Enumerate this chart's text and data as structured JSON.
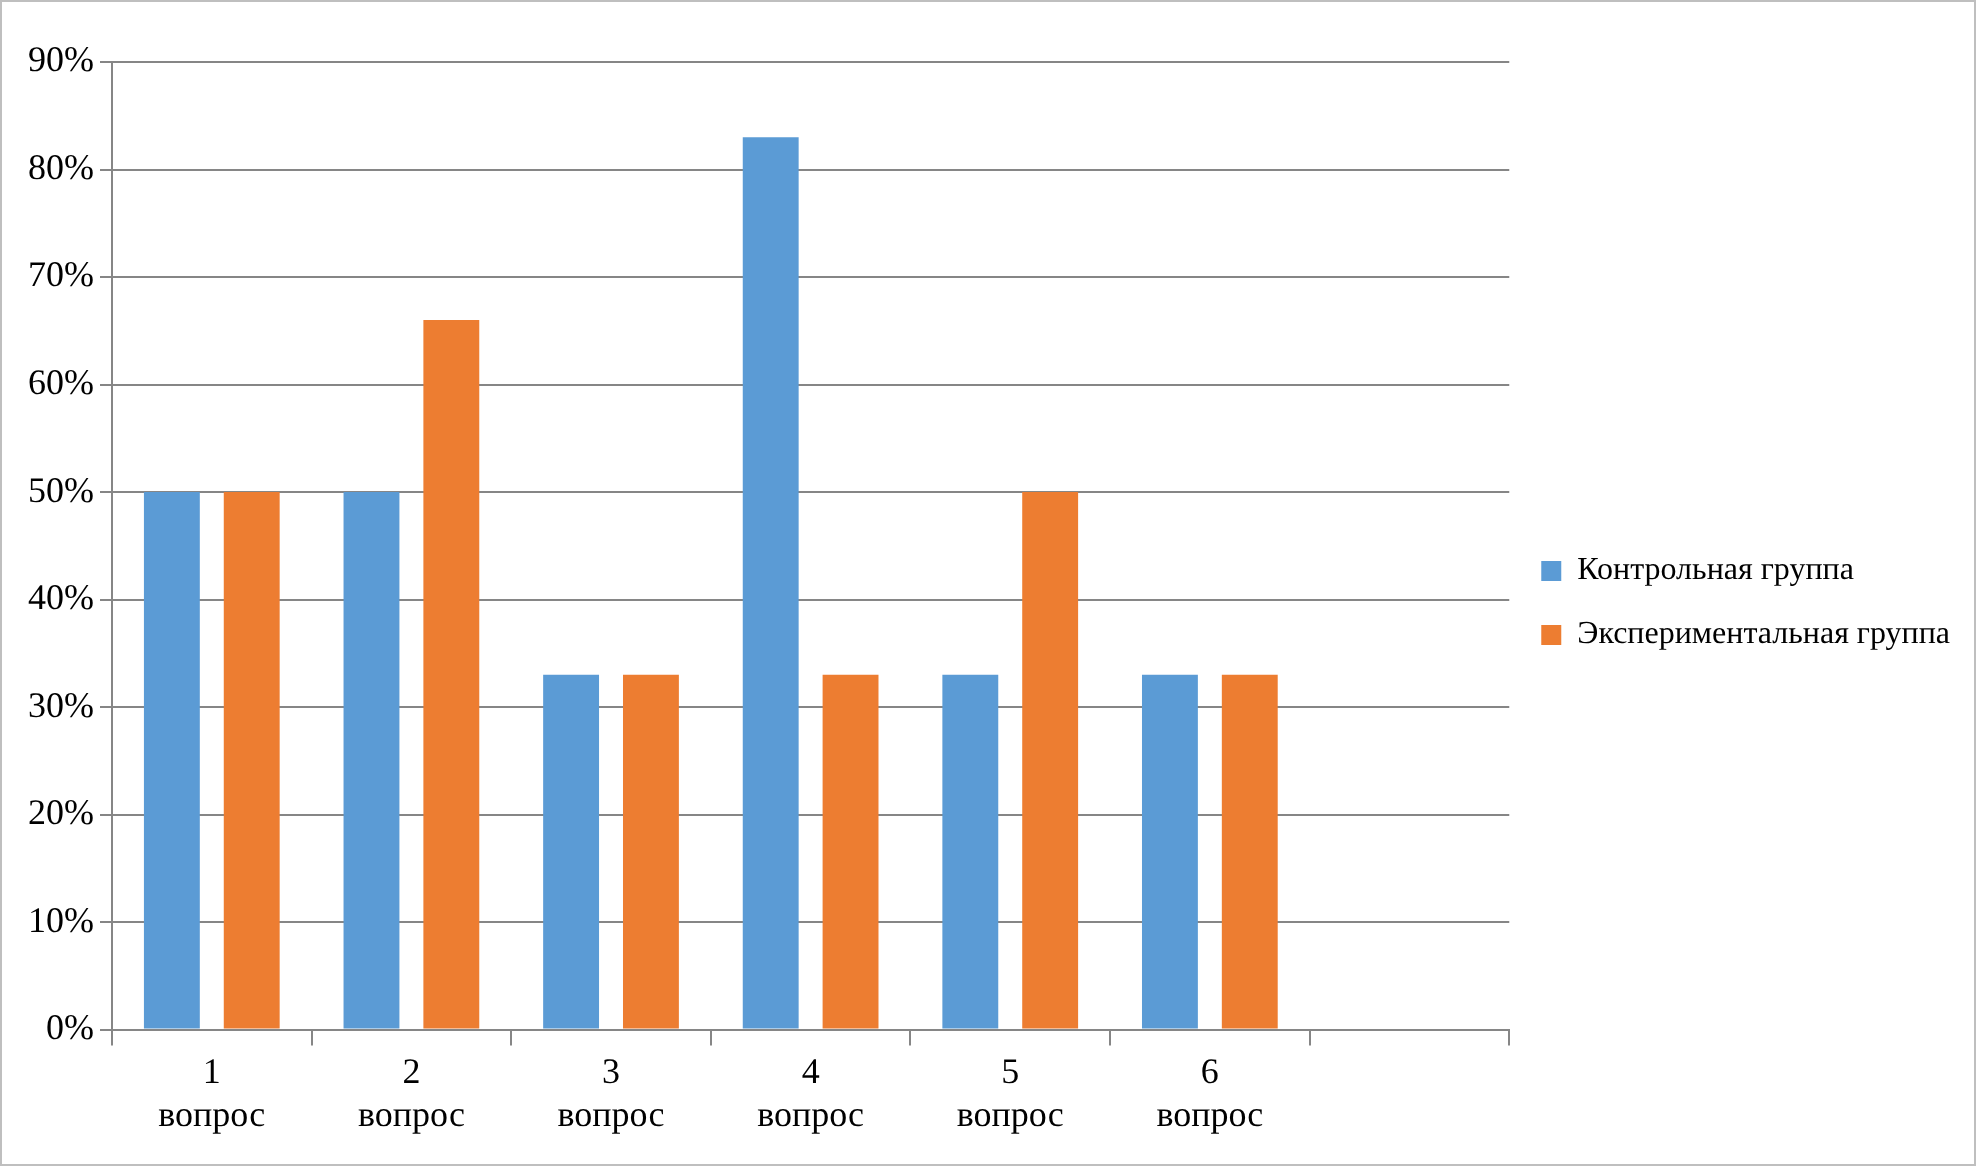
{
  "chart_data": {
    "type": "bar",
    "categories": [
      "1 вопрос",
      "2 вопрос",
      "3 вопрос",
      "4 вопрос",
      "5 вопрос",
      "6 вопрос",
      null
    ],
    "series": [
      {
        "name": "Контрольная группа",
        "color": "#5b9bd5",
        "values": [
          50,
          50,
          33,
          83,
          33,
          33,
          null
        ]
      },
      {
        "name": "Экспериментальная группа",
        "color": "#ed7d31",
        "values": [
          50,
          66,
          33,
          33,
          50,
          33,
          null
        ]
      }
    ],
    "ylim": [
      0,
      90
    ],
    "yticks": [
      {
        "value": 0,
        "label": "0%"
      },
      {
        "value": 10,
        "label": "10%"
      },
      {
        "value": 20,
        "label": "20%"
      },
      {
        "value": 30,
        "label": "30%"
      },
      {
        "value": 40,
        "label": "40%"
      },
      {
        "value": 50,
        "label": "50%"
      },
      {
        "value": 60,
        "label": "60%"
      },
      {
        "value": 70,
        "label": "70%"
      },
      {
        "value": 80,
        "label": "80%"
      },
      {
        "value": 90,
        "label": "90%"
      }
    ],
    "grid": "y",
    "legend": "right"
  }
}
